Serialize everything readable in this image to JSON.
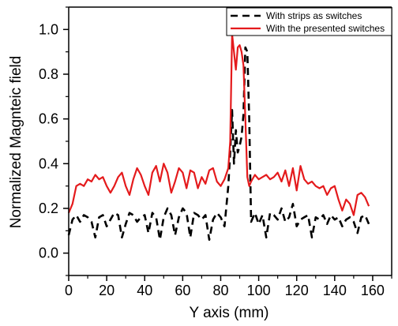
{
  "chart_data": {
    "type": "line",
    "xlabel": "Y axis (mm)",
    "ylabel": "Normalized Magnteic field",
    "xlim": [
      0,
      170
    ],
    "ylim": [
      -0.1,
      1.1
    ],
    "xticks": [
      "0",
      "20",
      "40",
      "60",
      "80",
      "100",
      "120",
      "140",
      "160"
    ],
    "yticks": [
      "0.0",
      "0.2",
      "0.4",
      "0.6",
      "0.8",
      "1.0"
    ],
    "legend_position": "top-right",
    "series": [
      {
        "name": "With strips as switches",
        "color": "#000000",
        "dash": "dashed",
        "x": [
          0,
          2,
          4,
          6,
          8,
          10,
          12,
          14,
          16,
          18,
          20,
          22,
          24,
          26,
          28,
          30,
          32,
          34,
          36,
          38,
          40,
          42,
          44,
          46,
          48,
          50,
          52,
          54,
          56,
          58,
          60,
          62,
          64,
          66,
          68,
          70,
          72,
          74,
          76,
          78,
          80,
          82,
          84,
          85,
          86,
          87,
          88,
          89,
          90,
          91,
          92,
          93,
          94,
          95,
          96,
          98,
          100,
          102,
          104,
          106,
          108,
          110,
          112,
          114,
          116,
          118,
          120,
          122,
          124,
          126,
          128,
          130,
          132,
          134,
          136,
          138,
          140,
          142,
          144,
          146,
          148,
          150,
          152,
          154,
          156,
          158
        ],
        "y": [
          0.08,
          0.15,
          0.17,
          0.14,
          0.17,
          0.16,
          0.14,
          0.07,
          0.16,
          0.17,
          0.12,
          0.15,
          0.18,
          0.17,
          0.07,
          0.13,
          0.18,
          0.17,
          0.14,
          0.16,
          0.17,
          0.09,
          0.18,
          0.16,
          0.06,
          0.16,
          0.2,
          0.17,
          0.08,
          0.16,
          0.2,
          0.18,
          0.07,
          0.18,
          0.17,
          0.15,
          0.17,
          0.06,
          0.15,
          0.18,
          0.16,
          0.12,
          0.3,
          0.45,
          0.64,
          0.4,
          0.55,
          0.45,
          0.48,
          0.52,
          0.62,
          0.92,
          0.9,
          0.6,
          0.14,
          0.18,
          0.13,
          0.17,
          0.07,
          0.18,
          0.17,
          0.15,
          0.2,
          0.14,
          0.16,
          0.22,
          0.12,
          0.15,
          0.16,
          0.17,
          0.07,
          0.16,
          0.15,
          0.17,
          0.13,
          0.17,
          0.15,
          0.16,
          0.12,
          0.15,
          0.16,
          0.14,
          0.09,
          0.16,
          0.17,
          0.13
        ]
      },
      {
        "name": "With the presented switches",
        "color": "#e41a1c",
        "dash": "solid",
        "x": [
          0,
          2,
          4,
          6,
          8,
          10,
          12,
          14,
          16,
          18,
          20,
          22,
          24,
          26,
          28,
          30,
          32,
          34,
          36,
          38,
          40,
          42,
          44,
          46,
          48,
          50,
          52,
          54,
          56,
          58,
          60,
          62,
          64,
          66,
          68,
          70,
          72,
          74,
          76,
          78,
          80,
          82,
          84,
          85,
          86,
          87,
          88,
          89,
          90,
          91,
          92,
          93,
          94,
          95,
          96,
          98,
          100,
          102,
          104,
          106,
          108,
          110,
          112,
          114,
          116,
          118,
          120,
          122,
          124,
          126,
          128,
          130,
          132,
          134,
          136,
          138,
          140,
          142,
          144,
          146,
          148,
          150,
          152,
          154,
          156,
          158
        ],
        "y": [
          0.18,
          0.22,
          0.3,
          0.31,
          0.3,
          0.33,
          0.32,
          0.35,
          0.33,
          0.34,
          0.3,
          0.27,
          0.3,
          0.34,
          0.36,
          0.3,
          0.26,
          0.33,
          0.38,
          0.35,
          0.3,
          0.26,
          0.36,
          0.39,
          0.32,
          0.4,
          0.36,
          0.27,
          0.32,
          0.38,
          0.36,
          0.29,
          0.37,
          0.36,
          0.29,
          0.34,
          0.31,
          0.37,
          0.38,
          0.32,
          0.3,
          0.33,
          0.38,
          0.5,
          0.98,
          0.9,
          0.82,
          0.92,
          0.93,
          0.9,
          0.84,
          0.6,
          0.34,
          0.3,
          0.32,
          0.35,
          0.33,
          0.34,
          0.35,
          0.33,
          0.34,
          0.36,
          0.32,
          0.37,
          0.3,
          0.38,
          0.28,
          0.39,
          0.33,
          0.31,
          0.32,
          0.3,
          0.29,
          0.3,
          0.26,
          0.29,
          0.3,
          0.24,
          0.19,
          0.24,
          0.22,
          0.17,
          0.26,
          0.27,
          0.25,
          0.21
        ]
      }
    ]
  }
}
